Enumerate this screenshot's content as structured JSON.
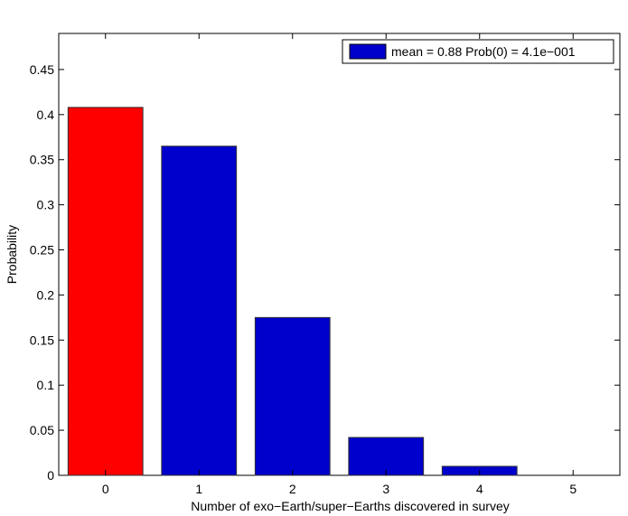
{
  "chart_data": {
    "type": "bar",
    "categories": [
      "0",
      "1",
      "2",
      "3",
      "4",
      "5"
    ],
    "values": [
      0.408,
      0.365,
      0.175,
      0.042,
      0.01,
      0.0
    ],
    "bar_colors": [
      "#ff0000",
      "#0000cc",
      "#0000cc",
      "#0000cc",
      "#0000cc",
      "#0000cc"
    ],
    "xlabel": "Number of exo−Earth/super−Earths discovered in survey",
    "ylabel": "Probability",
    "ylim": [
      0,
      0.49
    ],
    "xlim": [
      -0.5,
      5.5
    ],
    "yticks": [
      0,
      0.05,
      0.1,
      0.15,
      0.2,
      0.25,
      0.3,
      0.35,
      0.4,
      0.45
    ],
    "ytick_labels": [
      "0",
      "0.05",
      "0.1",
      "0.15",
      "0.2",
      "0.25",
      "0.3",
      "0.35",
      "0.4",
      "0.45"
    ],
    "xticks": [
      0,
      1,
      2,
      3,
      4,
      5
    ],
    "grid": false,
    "legend": {
      "placement": "top-right",
      "entries": [
        {
          "label": "mean = 0.88 Prob(0) = 4.1e−001",
          "color": "#0000cc"
        }
      ]
    }
  }
}
